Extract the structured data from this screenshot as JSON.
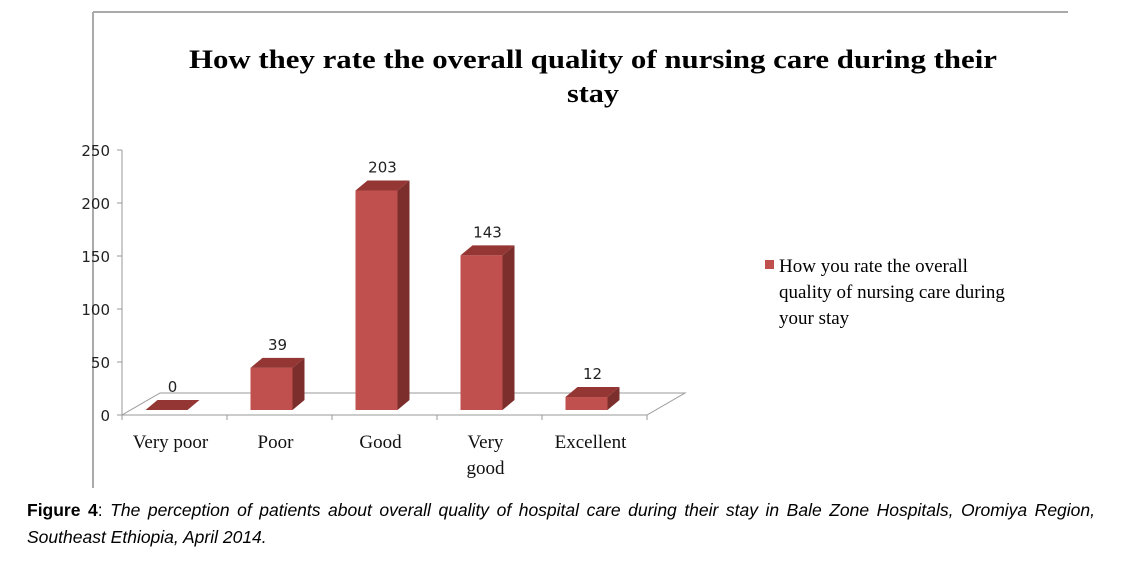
{
  "chart_data": {
    "type": "bar",
    "style": "3d-column",
    "title": "How they rate the overall quality of nursing care during their stay",
    "title_lines": [
      "How they rate the overall quality of nursing care during their",
      "stay"
    ],
    "categories": [
      "Very poor",
      "Poor",
      "Good",
      "Very good",
      "Excellent"
    ],
    "category_lines": [
      [
        "Very poor"
      ],
      [
        "Poor"
      ],
      [
        "Good"
      ],
      [
        "Very",
        "good"
      ],
      [
        "Excellent"
      ]
    ],
    "values": [
      0,
      39,
      203,
      143,
      12
    ],
    "data_labels": [
      "0",
      "39",
      "203",
      "143",
      "12"
    ],
    "series": [
      {
        "name": "How you rate the overall quality of nursing care during your stay",
        "values": [
          0,
          39,
          203,
          143,
          12
        ]
      }
    ],
    "legend_lines": [
      "How you rate the overall",
      "quality of nursing care during",
      "your stay"
    ],
    "legend_position": "right",
    "ylim": [
      0,
      250
    ],
    "yticks": [
      0,
      50,
      100,
      150,
      200,
      250
    ],
    "xlabel": "",
    "ylabel": "",
    "grid": false,
    "colors": {
      "front": "#c0504d",
      "side": "#7b2e2c",
      "top": "#943634"
    }
  },
  "caption": {
    "label": "Figure 4",
    "separator": ": ",
    "text": "The perception of patients about overall quality of hospital care during their stay in Bale Zone Hospitals, Oromiya Region, Southeast Ethiopia, April 2014."
  }
}
